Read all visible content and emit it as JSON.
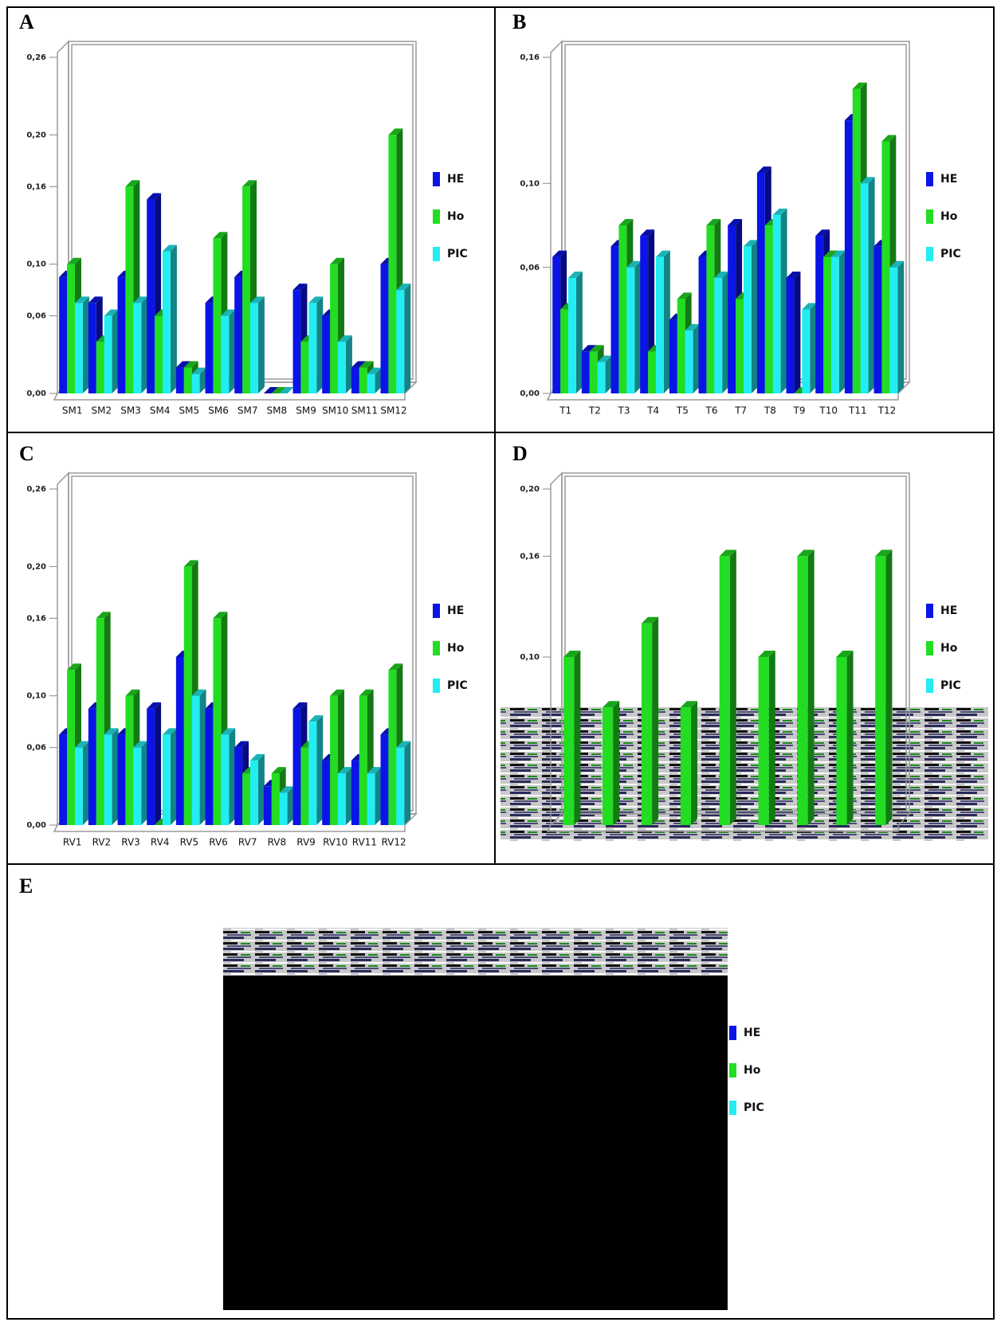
{
  "chart_data": [
    {
      "panel": "A",
      "type": "bar",
      "categories": [
        "SM1",
        "SM2",
        "SM3",
        "SM4",
        "SM5",
        "SM6",
        "SM7",
        "SM8",
        "SM9",
        "SM10",
        "SM11",
        "SM12"
      ],
      "series": [
        {
          "name": "HE",
          "color": "#0a14e6",
          "values": [
            0.09,
            0.07,
            0.09,
            0.15,
            0.02,
            0.07,
            0.09,
            0,
            0.08,
            0.06,
            0.02,
            0.1
          ]
        },
        {
          "name": "Ho",
          "color": "#22dd22",
          "values": [
            0.1,
            0.04,
            0.16,
            0.06,
            0.02,
            0.12,
            0.16,
            0,
            0.04,
            0.1,
            0.02,
            0.2
          ]
        },
        {
          "name": "PIC",
          "color": "#22eef2",
          "values": [
            0.07,
            0.06,
            0.07,
            0.11,
            0.015,
            0.06,
            0.07,
            0,
            0.07,
            0.04,
            0.015,
            0.08
          ]
        }
      ],
      "ylim": [
        0,
        0.26
      ],
      "yticks": [
        {
          "value": 0,
          "label": "0,00"
        },
        {
          "value": 0.06,
          "label": "0,06"
        },
        {
          "value": 0.1,
          "label": "0,10"
        },
        {
          "value": 0.16,
          "label": "0,16"
        },
        {
          "value": 0.2,
          "label": "0,20"
        },
        {
          "value": 0.26,
          "label": "0,26"
        }
      ]
    },
    {
      "panel": "B",
      "type": "bar",
      "categories": [
        "T1",
        "T2",
        "T3",
        "T4",
        "T5",
        "T6",
        "T7",
        "T8",
        "T9",
        "T10",
        "T11",
        "T12"
      ],
      "series": [
        {
          "name": "HE",
          "color": "#0a14e6",
          "values": [
            0.065,
            0.02,
            0.07,
            0.075,
            0.035,
            0.065,
            0.08,
            0.105,
            0.055,
            0.075,
            0.13,
            0.07
          ]
        },
        {
          "name": "Ho",
          "color": "#22dd22",
          "values": [
            0.04,
            0.02,
            0.08,
            0.02,
            0.045,
            0.08,
            0.045,
            0.08,
            0,
            0.065,
            0.145,
            0.12
          ]
        },
        {
          "name": "PIC",
          "color": "#22eef2",
          "values": [
            0.055,
            0.015,
            0.06,
            0.065,
            0.03,
            0.055,
            0.07,
            0.085,
            0.04,
            0.065,
            0.1,
            0.06
          ]
        }
      ],
      "ylim": [
        0,
        0.16
      ],
      "yticks": [
        {
          "value": 0,
          "label": "0,00"
        },
        {
          "value": 0.06,
          "label": "0,06"
        },
        {
          "value": 0.1,
          "label": "0,10"
        },
        {
          "value": 0.16,
          "label": "0,16"
        }
      ]
    },
    {
      "panel": "C",
      "type": "bar",
      "categories": [
        "RV1",
        "RV2",
        "RV3",
        "RV4",
        "RV5",
        "RV6",
        "RV7",
        "RV8",
        "RV9",
        "RV10",
        "RV11",
        "RV12"
      ],
      "series": [
        {
          "name": "HE",
          "color": "#0a14e6",
          "values": [
            0.07,
            0.09,
            0.07,
            0.09,
            0.13,
            0.09,
            0.06,
            0.03,
            0.09,
            0.05,
            0.05,
            0.07
          ]
        },
        {
          "name": "Ho",
          "color": "#22dd22",
          "values": [
            0.12,
            0.16,
            0.1,
            0,
            0.2,
            0.16,
            0.04,
            0.04,
            0.06,
            0.1,
            0.1,
            0.12
          ]
        },
        {
          "name": "PIC",
          "color": "#22eef2",
          "values": [
            0.06,
            0.07,
            0.06,
            0.07,
            0.1,
            0.07,
            0.05,
            0.025,
            0.08,
            0.04,
            0.04,
            0.06
          ]
        }
      ],
      "ylim": [
        0,
        0.26
      ],
      "yticks": [
        {
          "value": 0,
          "label": "0,00"
        },
        {
          "value": 0.06,
          "label": "0,06"
        },
        {
          "value": 0.1,
          "label": "0,10"
        },
        {
          "value": 0.16,
          "label": "0,16"
        },
        {
          "value": 0.2,
          "label": "0,20"
        },
        {
          "value": 0.26,
          "label": "0,26"
        }
      ]
    },
    {
      "panel": "D",
      "type": "bar",
      "categories": [
        null,
        null,
        null,
        null,
        null,
        null,
        null,
        null,
        null
      ],
      "series": [
        {
          "name": "HE",
          "color": "#0a14e6",
          "values": [
            null,
            null,
            null,
            null,
            null,
            null,
            null,
            null,
            null
          ]
        },
        {
          "name": "Ho",
          "color": "#22dd22",
          "values": [
            0.1,
            0.07,
            0.12,
            0.07,
            0.16,
            0.1,
            0.16,
            0.1,
            0.16
          ]
        },
        {
          "name": "PIC",
          "color": "#22eef2",
          "values": [
            null,
            null,
            null,
            null,
            null,
            null,
            null,
            null,
            null
          ]
        }
      ],
      "ylim": [
        0,
        0.2
      ],
      "yticks": [
        {
          "value": 0.1,
          "label": "0,10"
        },
        {
          "value": 0.16,
          "label": "0,16"
        },
        {
          "value": 0.2,
          "label": "0,20"
        }
      ]
    },
    {
      "panel": "E",
      "type": "bar",
      "series": [
        {
          "name": "HE",
          "color": "#0a14e6"
        },
        {
          "name": "Ho",
          "color": "#22dd22"
        },
        {
          "name": "PIC",
          "color": "#22eef2"
        }
      ]
    }
  ]
}
